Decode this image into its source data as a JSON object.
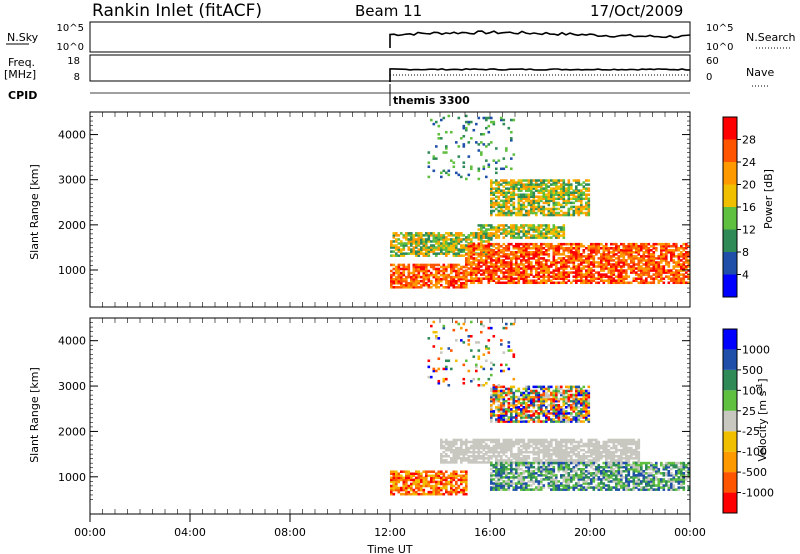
{
  "header": {
    "station": "Rankin Inlet (fitACF)",
    "beam": "Beam 11",
    "date": "17/Oct/2009"
  },
  "summary": {
    "nsky_label": "N.Sky",
    "nsky_ticks": [
      "10^5",
      "10^0"
    ],
    "nsearch_label": "N.Search",
    "nsearch_ticks": [
      "10^5",
      "10^0"
    ],
    "freq_label": "Freq.",
    "freq_unit": "[MHz]",
    "freq_ticks": [
      "18",
      "8"
    ],
    "nave_label": "Nave",
    "nave_ticks": [
      "60",
      "0"
    ],
    "cpid_label": "CPID",
    "cpid_value": "themis 3300"
  },
  "colors": {
    "power_scale": [
      "#0000ff",
      "#1f4fa8",
      "#2e8b57",
      "#5fbf3f",
      "#f0c000",
      "#ff9900",
      "#ff5500",
      "#ff0000"
    ],
    "velocity_scale": [
      "#ff0000",
      "#ff5500",
      "#ff9900",
      "#f0c000",
      "#c8c8c0",
      "#5fbf3f",
      "#2e8b57",
      "#1f4fa8",
      "#0000ff"
    ]
  },
  "chart_data": [
    {
      "type": "heatmap",
      "title": "",
      "xlabel": "Time UT",
      "ylabel": "Slant Range [km]",
      "x_ticks": [
        "00:00",
        "04:00",
        "08:00",
        "12:00",
        "16:00",
        "20:00",
        "00:00"
      ],
      "xlim_hours": [
        0,
        24
      ],
      "ylim": [
        180,
        4500
      ],
      "y_ticks": [
        "1000",
        "2000",
        "3000",
        "4000"
      ],
      "colorbar_label": "Power [dB]",
      "colorbar_ticks": [
        "4",
        "8",
        "12",
        "16",
        "20",
        "24",
        "28"
      ],
      "data_start_hour": 12,
      "echo_bands": [
        {
          "t0": 12.0,
          "t1": 15.0,
          "r0": 600,
          "r1": 1100,
          "level": "high"
        },
        {
          "t0": 12.0,
          "t1": 16.0,
          "r0": 1300,
          "r1": 1800,
          "level": "mid"
        },
        {
          "t0": 15.0,
          "t1": 24.0,
          "r0": 700,
          "r1": 1600,
          "level": "high"
        },
        {
          "t0": 15.5,
          "t1": 19.0,
          "r0": 1700,
          "r1": 2000,
          "level": "mid"
        },
        {
          "t0": 16.0,
          "t1": 20.0,
          "r0": 2200,
          "r1": 3000,
          "level": "mid"
        },
        {
          "t0": 13.5,
          "t1": 17.0,
          "r0": 3000,
          "r1": 4400,
          "level": "low"
        }
      ]
    },
    {
      "type": "heatmap",
      "title": "",
      "xlabel": "Time UT",
      "ylabel": "Slant Range [km]",
      "x_ticks": [
        "00:00",
        "04:00",
        "08:00",
        "12:00",
        "16:00",
        "20:00",
        "00:00"
      ],
      "xlim_hours": [
        0,
        24
      ],
      "ylim": [
        180,
        4500
      ],
      "y_ticks": [
        "1000",
        "2000",
        "3000",
        "4000"
      ],
      "colorbar_label": "Velocity [m s^-1]",
      "colorbar_ticks": [
        "1000",
        "500",
        "100",
        "25",
        "-25",
        "-100",
        "-500",
        "-1000"
      ],
      "data_start_hour": 12,
      "echo_bands": [
        {
          "t0": 12.0,
          "t1": 15.0,
          "r0": 600,
          "r1": 1100,
          "level": "neg"
        },
        {
          "t0": 14.0,
          "t1": 22.0,
          "r0": 1300,
          "r1": 1800,
          "level": "zero"
        },
        {
          "t0": 16.0,
          "t1": 24.0,
          "r0": 700,
          "r1": 1300,
          "level": "pos"
        },
        {
          "t0": 16.0,
          "t1": 20.0,
          "r0": 2200,
          "r1": 3000,
          "level": "mixed"
        },
        {
          "t0": 13.5,
          "t1": 17.0,
          "r0": 3000,
          "r1": 4400,
          "level": "sparse"
        }
      ]
    }
  ]
}
